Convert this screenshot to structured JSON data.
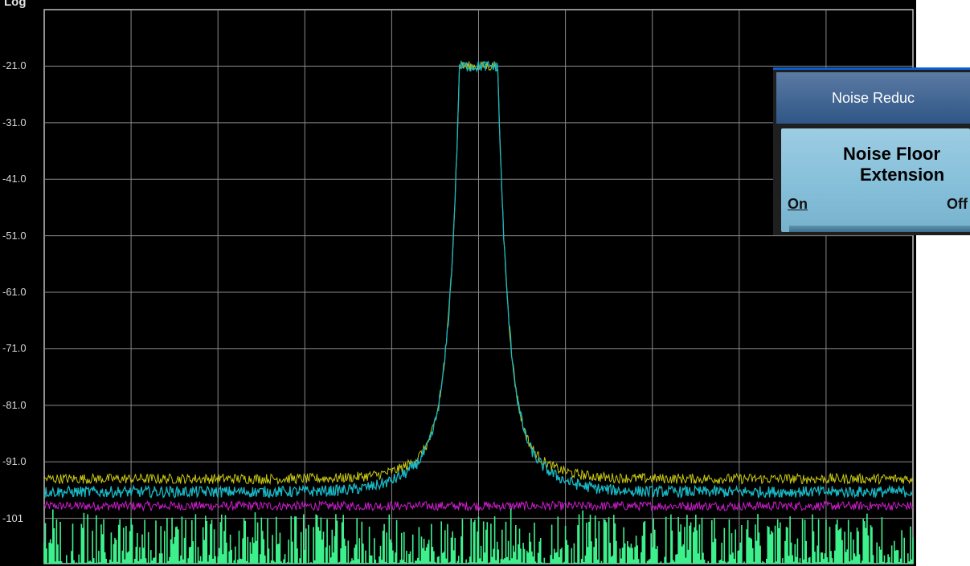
{
  "display": {
    "scale_label": "Log",
    "y_labels": [
      "-21.0",
      "-31.0",
      "-41.0",
      "-51.0",
      "-61.0",
      "-71.0",
      "-81.0",
      "-91.0",
      "-101"
    ]
  },
  "softkey_menu": {
    "header": "Noise Reduc",
    "key_line1": "Noise Floor",
    "key_line2": "Extension",
    "option_on": "On",
    "option_off": "Off",
    "selected": "On"
  },
  "chart_data": {
    "type": "line",
    "grid": true,
    "ylim": [
      -109,
      -11
    ],
    "y_ticks": [
      -21,
      -31,
      -41,
      -51,
      -61,
      -71,
      -81,
      -91,
      -101
    ],
    "x_divisions": 10,
    "series": [
      {
        "color": "#c8c814",
        "floor": -94.0,
        "peak": -21.0
      },
      {
        "color": "#19b8c4",
        "floor": -96.3,
        "peak": -21.0
      },
      {
        "color": "#c81ec8",
        "floor": -98.8
      },
      {
        "color": "#3cf08c",
        "floor": -108.5
      }
    ]
  }
}
